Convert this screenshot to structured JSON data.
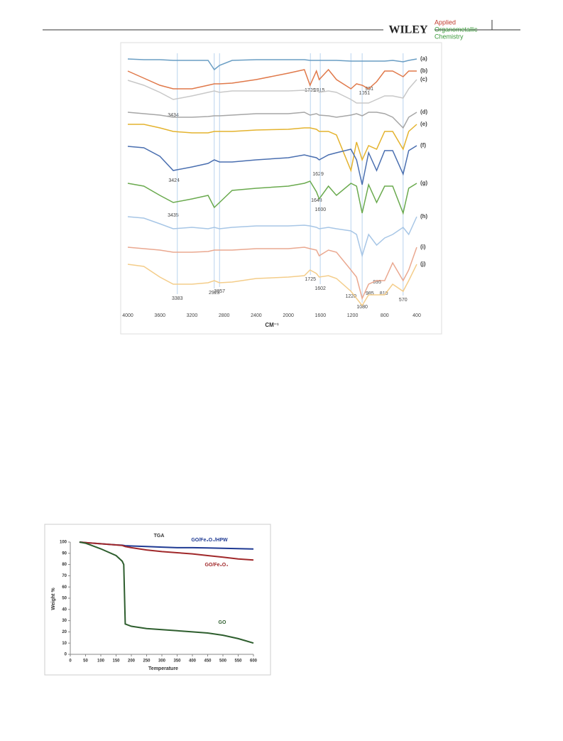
{
  "header": {
    "publisher": "WILEY",
    "journal": [
      "Applied",
      "Organometallic",
      "Chemistry"
    ]
  },
  "chart_data": [
    {
      "type": "line",
      "x_label": "CM⁻¹",
      "xlim": [
        4000,
        400
      ],
      "xticks": [
        4000,
        3600,
        3200,
        2800,
        2400,
        2000,
        1600,
        1200,
        800,
        400
      ],
      "ylim": [
        0,
        365
      ],
      "x": [
        4000,
        3800,
        3600,
        3434,
        3200,
        3000,
        2923,
        2857,
        2700,
        2400,
        2000,
        1800,
        1729,
        1650,
        1615,
        1500,
        1400,
        1220,
        1150,
        1080,
        1000,
        900,
        800,
        700,
        570,
        500,
        400
      ],
      "series": [
        {
          "name": "(a)",
          "color": "#6a9ec4",
          "values": [
            352,
            351,
            351,
            350,
            350,
            350,
            337,
            343,
            350,
            351,
            351,
            351,
            350,
            350,
            350,
            350,
            350,
            349,
            349,
            349,
            349,
            349,
            349,
            350,
            348,
            350,
            352
          ]
        },
        {
          "name": "(b)",
          "color": "#e0794a",
          "values": [
            335,
            325,
            315,
            310,
            310,
            315,
            317,
            317,
            318,
            323,
            332,
            337,
            315,
            335,
            323,
            337,
            323,
            310,
            317,
            315,
            310,
            320,
            335,
            335,
            327,
            335,
            335
          ]
        },
        {
          "name": "(c)",
          "color": "#c8c8c8",
          "values": [
            322,
            315,
            305,
            295,
            300,
            305,
            307,
            305,
            307,
            307,
            307,
            308,
            307,
            310,
            305,
            307,
            305,
            295,
            290,
            290,
            290,
            295,
            300,
            300,
            297,
            310,
            323
          ]
        },
        {
          "name": "(d)",
          "color": "#a6a6a6",
          "values": [
            277,
            275,
            273,
            270,
            270,
            271,
            272,
            272,
            273,
            275,
            275,
            277,
            273,
            275,
            273,
            272,
            270,
            273,
            275,
            272,
            277,
            277,
            275,
            270,
            255,
            270,
            277
          ]
        },
        {
          "name": "(e)",
          "color": "#e4b32e",
          "values": [
            260,
            260,
            255,
            250,
            248,
            248,
            250,
            250,
            250,
            252,
            253,
            255,
            255,
            253,
            250,
            250,
            245,
            195,
            235,
            210,
            230,
            225,
            250,
            250,
            225,
            250,
            260
          ]
        },
        {
          "name": "(f)",
          "color": "#4a6fb0",
          "values": [
            229,
            227,
            215,
            195,
            200,
            205,
            210,
            207,
            207,
            210,
            213,
            217,
            215,
            213,
            210,
            217,
            220,
            225,
            210,
            175,
            220,
            195,
            223,
            223,
            190,
            223,
            230
          ]
        },
        {
          "name": "(g)",
          "color": "#6aaa4e",
          "values": [
            177,
            173,
            160,
            150,
            155,
            160,
            143,
            150,
            167,
            170,
            173,
            177,
            180,
            165,
            155,
            173,
            160,
            177,
            173,
            135,
            175,
            150,
            173,
            173,
            135,
            170,
            177
          ]
        },
        {
          "name": "(h)",
          "color": "#a7c6e6",
          "values": [
            130,
            128,
            120,
            113,
            115,
            113,
            115,
            113,
            115,
            117,
            117,
            118,
            117,
            115,
            113,
            115,
            113,
            110,
            105,
            75,
            105,
            90,
            100,
            105,
            115,
            105,
            130
          ]
        },
        {
          "name": "(i)",
          "color": "#eaa890",
          "values": [
            87,
            85,
            83,
            80,
            80,
            81,
            83,
            83,
            83,
            85,
            85,
            87,
            85,
            83,
            75,
            83,
            80,
            55,
            45,
            15,
            35,
            40,
            40,
            65,
            40,
            55,
            87
          ]
        },
        {
          "name": "(j)",
          "color": "#f4cd8a",
          "values": [
            63,
            60,
            45,
            35,
            35,
            37,
            40,
            37,
            38,
            43,
            45,
            47,
            55,
            50,
            45,
            47,
            43,
            25,
            15,
            5,
            20,
            20,
            20,
            35,
            25,
            40,
            63
          ]
        }
      ],
      "annotations": [
        3434,
        1729,
        1615,
        1051,
        991,
        3424,
        1629,
        3435,
        1648,
        1600,
        3383,
        2923,
        2857,
        1725,
        1602,
        1220,
        1080,
        985,
        895,
        810,
        570
      ]
    },
    {
      "type": "line",
      "title": "TGA",
      "x_label": "Temperature",
      "y_label": "Weight %",
      "xlim": [
        0,
        600
      ],
      "xticks": [
        0,
        50,
        100,
        150,
        200,
        250,
        300,
        350,
        400,
        450,
        500,
        550,
        600
      ],
      "ylim": [
        0,
        100
      ],
      "yticks": [
        0,
        10,
        20,
        30,
        40,
        50,
        60,
        70,
        80,
        90,
        100
      ],
      "x": [
        30,
        50,
        100,
        150,
        170,
        175,
        180,
        200,
        250,
        300,
        350,
        400,
        450,
        500,
        550,
        575,
        600
      ],
      "series": [
        {
          "name": "GO/Fe₃O₄/HPW",
          "color": "#1f3a93",
          "values": [
            100,
            99.5,
            98.5,
            97.5,
            97.2,
            97,
            96.8,
            96.5,
            96,
            95.5,
            95,
            95,
            94.8,
            94.5,
            94.2,
            94,
            93.8
          ]
        },
        {
          "name": "GO/Fe₃O₄",
          "color": "#a0282a",
          "values": [
            100,
            99.5,
            98.5,
            97.5,
            97,
            96.5,
            96,
            95,
            93,
            91.5,
            90.5,
            89.5,
            88,
            86.5,
            85,
            84.5,
            84
          ]
        },
        {
          "name": "GO",
          "color": "#2e5e2e",
          "values": [
            100,
            99,
            94,
            88,
            83,
            80,
            27,
            25,
            23,
            22,
            21,
            20,
            19,
            17,
            14,
            12,
            10
          ]
        }
      ]
    }
  ]
}
